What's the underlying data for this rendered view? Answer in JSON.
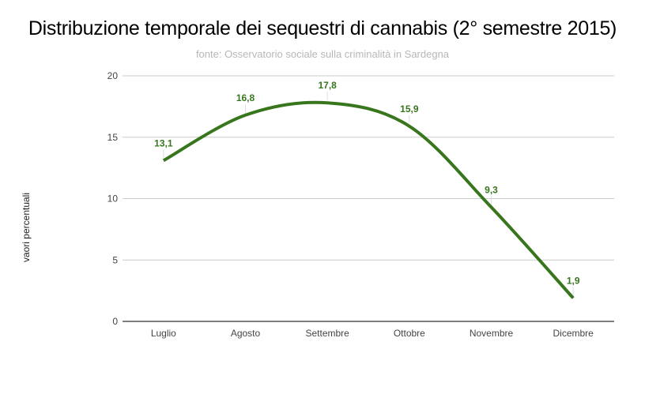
{
  "chart_data": {
    "type": "line",
    "title": "Distribuzione temporale dei sequestri di cannabis (2° semestre  2015)",
    "subtitle": "fonte: Osservatorio sociale sulla criminalità in Sardegna",
    "xlabel": "",
    "ylabel": "vaori percentuali",
    "categories": [
      "Luglio",
      "Agosto",
      "Settembre",
      "Ottobre",
      "Novembre",
      "Dicembre"
    ],
    "series": [
      {
        "name": "vaori percentuali",
        "values": [
          13.1,
          16.8,
          17.8,
          15.9,
          9.3,
          1.9
        ],
        "labels": [
          "13,1",
          "16,8",
          "17,8",
          "15,9",
          "9,3",
          "1,9"
        ],
        "color": "#38761d",
        "smooth": true
      }
    ],
    "ylim": [
      0,
      20
    ],
    "yticks": [
      0,
      5,
      10,
      15,
      20
    ],
    "ytick_labels": [
      "0",
      "5",
      "10",
      "15",
      "20"
    ],
    "grid": true,
    "legend": "none"
  },
  "colors": {
    "line": "#38761d",
    "grid": "#cccccc",
    "axis": "#333333",
    "subtitle": "#b7b7b7"
  }
}
